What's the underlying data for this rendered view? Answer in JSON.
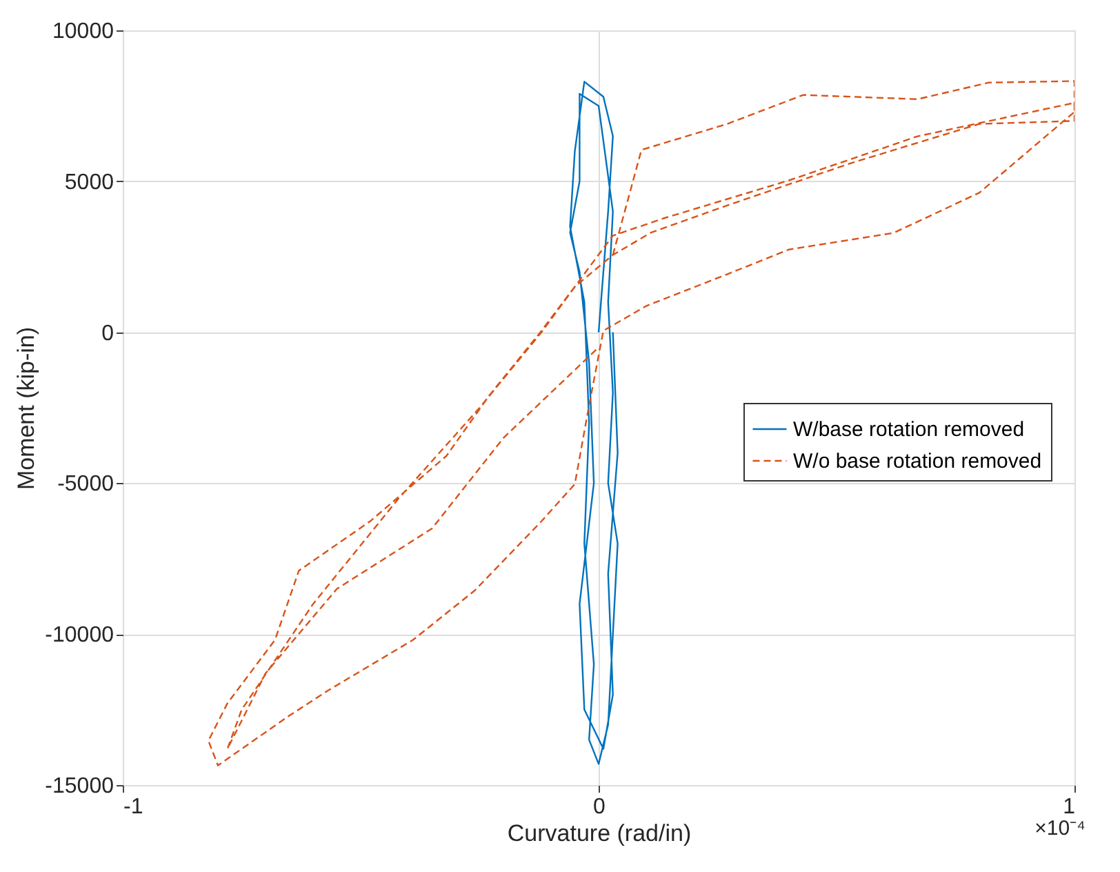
{
  "chart_data": {
    "type": "line",
    "xlabel": "Curvature (rad/in)",
    "ylabel": "Moment (kip-in)",
    "annotations": [
      "×10⁻⁴"
    ],
    "xlim": [
      -1,
      1
    ],
    "xticks": [
      -1,
      0,
      1
    ],
    "ylim": [
      -15000,
      10000
    ],
    "yticks": [
      -15000,
      -10000,
      -5000,
      0,
      5000,
      10000
    ],
    "grid": true,
    "legend": "right",
    "series": [
      {
        "name": "W/base rotation removed",
        "color": "#0072bd",
        "line_style": "solid",
        "x": [
          0,
          0.02,
          0.03,
          0.01,
          -0.03,
          -0.05,
          -0.06,
          -0.03,
          -0.02,
          -0.03,
          -0.01,
          -0.02,
          0.0,
          0.02,
          0.03,
          0.04,
          0.02,
          0.03,
          0.02,
          0.03,
          0.0,
          -0.04,
          -0.04,
          -0.06,
          -0.04,
          -0.02,
          -0.01,
          -0.04,
          -0.03,
          0.01,
          0.03,
          0.02,
          0.04,
          0.03
        ],
        "values": [
          0,
          4000,
          6500,
          7800,
          8300,
          6000,
          3500,
          1000,
          -3000,
          -7000,
          -11000,
          -13500,
          -14300,
          -13000,
          -10000,
          -7000,
          -5000,
          -2000,
          1000,
          4000,
          7500,
          7900,
          5000,
          3300,
          2000,
          -1000,
          -5000,
          -9000,
          -12500,
          -13800,
          -12000,
          -8000,
          -4000,
          0
        ]
      },
      {
        "name": "W/o base rotation removed",
        "color": "#d95319",
        "line_style": "dashed",
        "x": [
          0.03,
          0.09,
          0.27,
          0.43,
          0.67,
          0.82,
          1.0,
          1.0,
          0.8,
          0.62,
          0.4,
          0.27,
          0.1,
          0.01,
          -0.02,
          -0.05,
          -0.12,
          -0.26,
          -0.39,
          -0.57,
          -0.65,
          -0.8,
          -0.82,
          -0.78,
          -0.68,
          -0.63,
          -0.48,
          -0.32,
          -0.23,
          -0.12,
          -0.05,
          0.03,
          0.11,
          0.27,
          0.53,
          0.8,
          1.0,
          1.0,
          0.67,
          0.4,
          0.14,
          0.03,
          -0.02,
          -0.12,
          -0.25,
          -0.42,
          -0.6,
          -0.75,
          -0.78,
          -0.7,
          -0.55,
          -0.35,
          -0.2,
          0.0
        ],
        "values": [
          2560,
          6040,
          6900,
          7860,
          7720,
          8270,
          8320,
          7300,
          4620,
          3290,
          2740,
          1920,
          870,
          50,
          -2420,
          -5030,
          -6260,
          -8550,
          -10190,
          -11880,
          -12700,
          -14350,
          -13530,
          -12290,
          -10190,
          -7900,
          -6260,
          -4100,
          -2100,
          50,
          1510,
          2560,
          3300,
          4200,
          5600,
          6900,
          7000,
          7600,
          6490,
          5030,
          3790,
          3200,
          2150,
          0,
          -2500,
          -5500,
          -9000,
          -12500,
          -13800,
          -11300,
          -8500,
          -6500,
          -3500,
          -500
        ]
      }
    ]
  }
}
